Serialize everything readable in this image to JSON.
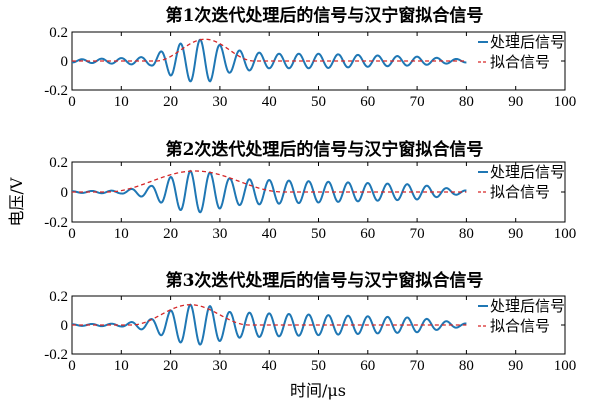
{
  "figure": {
    "ylabel": "电压/V",
    "xlabel": "时间/μs"
  },
  "colors": {
    "processed": "#1f77b4",
    "fit": "#d62728"
  },
  "chart_data": [
    {
      "type": "line",
      "title": "第1次迭代处理后的信号与汉宁窗拟合信号",
      "xlim": [
        0,
        100
      ],
      "ylim": [
        -0.2,
        0.2
      ],
      "xticks": [
        "0",
        "10",
        "20",
        "30",
        "40",
        "50",
        "60",
        "70",
        "80",
        "90",
        "100"
      ],
      "yticks": [
        "0.2",
        "0",
        "-0.2"
      ],
      "legend": {
        "position": "top-right"
      },
      "series": [
        {
          "name": "处理后信号",
          "style": "solid",
          "x_range": [
            0,
            80
          ],
          "peak": 0.15,
          "peak_at": 26,
          "period": 4,
          "envelope_points": [
            [
              0,
              0.01
            ],
            [
              10,
              0.02
            ],
            [
              16,
              0.03
            ],
            [
              20,
              0.1
            ],
            [
              25,
              0.15
            ],
            [
              28,
              0.14
            ],
            [
              32,
              0.08
            ],
            [
              40,
              0.05
            ],
            [
              50,
              0.05
            ],
            [
              60,
              0.04
            ],
            [
              70,
              0.03
            ],
            [
              80,
              0.01
            ]
          ]
        },
        {
          "name": "拟合信号",
          "style": "dashed",
          "x_range": [
            0,
            80
          ],
          "hanning_center": 27,
          "hanning_width": 20,
          "peak": 0.15
        }
      ]
    },
    {
      "type": "line",
      "title": "第2次迭代处理后的信号与汉宁窗拟合信号",
      "xlim": [
        0,
        100
      ],
      "ylim": [
        -0.2,
        0.2
      ],
      "xticks": [
        "0",
        "10",
        "20",
        "30",
        "40",
        "50",
        "60",
        "70",
        "80",
        "90",
        "100"
      ],
      "yticks": [
        "0.2",
        "0",
        "-0.2"
      ],
      "legend": {
        "position": "top-right"
      },
      "series": [
        {
          "name": "处理后信号",
          "style": "solid",
          "x_range": [
            0,
            80
          ],
          "peak": 0.14,
          "peak_at": 24,
          "period": 4,
          "envelope_points": [
            [
              0,
              0.005
            ],
            [
              10,
              0.01
            ],
            [
              16,
              0.04
            ],
            [
              20,
              0.1
            ],
            [
              24,
              0.14
            ],
            [
              28,
              0.13
            ],
            [
              32,
              0.09
            ],
            [
              40,
              0.08
            ],
            [
              50,
              0.07
            ],
            [
              60,
              0.06
            ],
            [
              70,
              0.05
            ],
            [
              80,
              0.01
            ]
          ]
        },
        {
          "name": "拟合信号",
          "style": "dashed",
          "x_range": [
            0,
            80
          ],
          "hanning_center": 25,
          "hanning_width": 36,
          "peak": 0.14
        }
      ]
    },
    {
      "type": "line",
      "title": "第3次迭代处理后的信号与汉宁窗拟合信号",
      "xlim": [
        0,
        100
      ],
      "ylim": [
        -0.2,
        0.2
      ],
      "xticks": [
        "0",
        "10",
        "20",
        "30",
        "40",
        "50",
        "60",
        "70",
        "80",
        "90",
        "100"
      ],
      "yticks": [
        "0.2",
        "0",
        "-0.2"
      ],
      "legend": {
        "position": "top-right"
      },
      "series": [
        {
          "name": "处理后信号",
          "style": "solid",
          "x_range": [
            0,
            80
          ],
          "peak": 0.14,
          "peak_at": 24,
          "period": 4,
          "envelope_points": [
            [
              0,
              0.005
            ],
            [
              10,
              0.01
            ],
            [
              16,
              0.04
            ],
            [
              20,
              0.1
            ],
            [
              24,
              0.14
            ],
            [
              28,
              0.13
            ],
            [
              32,
              0.09
            ],
            [
              40,
              0.08
            ],
            [
              50,
              0.07
            ],
            [
              60,
              0.06
            ],
            [
              70,
              0.05
            ],
            [
              80,
              0.01
            ]
          ]
        },
        {
          "name": "拟合信号",
          "style": "dashed",
          "x_range": [
            0,
            80
          ],
          "hanning_center": 24,
          "hanning_width": 24,
          "peak": 0.14
        }
      ]
    }
  ]
}
